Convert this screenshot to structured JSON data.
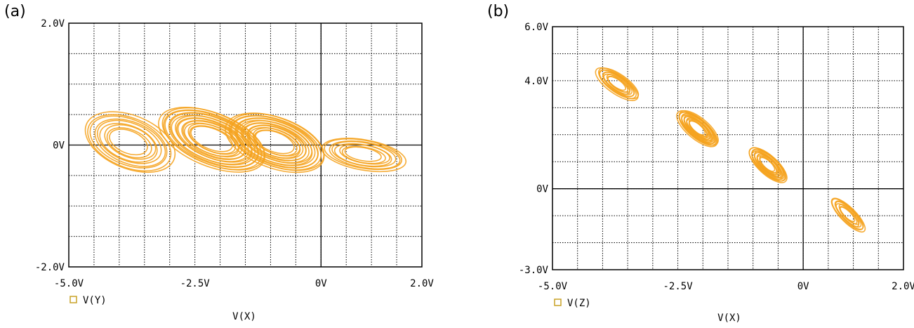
{
  "colors": {
    "trace": "#f5a31f",
    "trace_dark": "#c9a227",
    "grid": "#000000",
    "frame": "#000000"
  },
  "chart_data": [
    {
      "panel_label": "(a)",
      "type": "scatter",
      "title": "",
      "xlabel": "V(X)",
      "ylabel": "",
      "xlim": [
        -5.0,
        2.0
      ],
      "ylim": [
        -2.0,
        2.0
      ],
      "x_tick_values": [
        -5.0,
        -2.5,
        0,
        2.0
      ],
      "x_tick_labels": [
        "-5.0V",
        "-2.5V",
        "0V",
        "2.0V"
      ],
      "y_tick_values": [
        -2.0,
        0,
        2.0
      ],
      "y_tick_labels": [
        "-2.0V",
        "0V",
        "2.0V"
      ],
      "grid": true,
      "legend": [
        "V(Y)"
      ],
      "legend_marker": "square",
      "series": [
        {
          "name": "V(Y)",
          "lobes": [
            {
              "cx": -3.8,
              "cy": 0.05,
              "a": 1.05,
              "b": 1.55,
              "tilt": 68,
              "rings": 9
            },
            {
              "cx": -2.15,
              "cy": 0.1,
              "a": 1.05,
              "b": 1.85,
              "tilt": 68,
              "rings": 16
            },
            {
              "cx": -0.9,
              "cy": 0.05,
              "a": 1.0,
              "b": 1.7,
              "tilt": 70,
              "rings": 16
            },
            {
              "cx": 0.85,
              "cy": -0.15,
              "a": 0.6,
              "b": 1.4,
              "tilt": 80,
              "rings": 8
            }
          ]
        }
      ]
    },
    {
      "panel_label": "(b)",
      "type": "scatter",
      "title": "",
      "xlabel": "V(X)",
      "ylabel": "",
      "xlim": [
        -5.0,
        2.0
      ],
      "ylim": [
        -3.0,
        6.0
      ],
      "x_tick_values": [
        -5.0,
        -2.5,
        0,
        2.0
      ],
      "x_tick_labels": [
        "-5.0V",
        "-2.5V",
        "0V",
        "2.0V"
      ],
      "y_tick_values": [
        -3.0,
        0,
        4.0,
        6.0
      ],
      "y_tick_labels": [
        "-3.0V",
        "0V",
        "4.0V",
        "6.0V"
      ],
      "grid": true,
      "legend": [
        "V(Z)"
      ],
      "legend_marker": "square",
      "series": [
        {
          "name": "V(Z)",
          "lobes": [
            {
              "cx": -3.7,
              "cy": 3.9,
              "a": 1.0,
              "b": 0.7,
              "tilt": -35,
              "rings": 10
            },
            {
              "cx": -2.1,
              "cy": 2.25,
              "a": 1.0,
              "b": 0.75,
              "tilt": -40,
              "rings": 16
            },
            {
              "cx": -0.7,
              "cy": 0.9,
              "a": 0.95,
              "b": 0.7,
              "tilt": -42,
              "rings": 14
            },
            {
              "cx": 0.9,
              "cy": -0.95,
              "a": 0.9,
              "b": 0.55,
              "tilt": -45,
              "rings": 8
            }
          ]
        }
      ]
    }
  ]
}
